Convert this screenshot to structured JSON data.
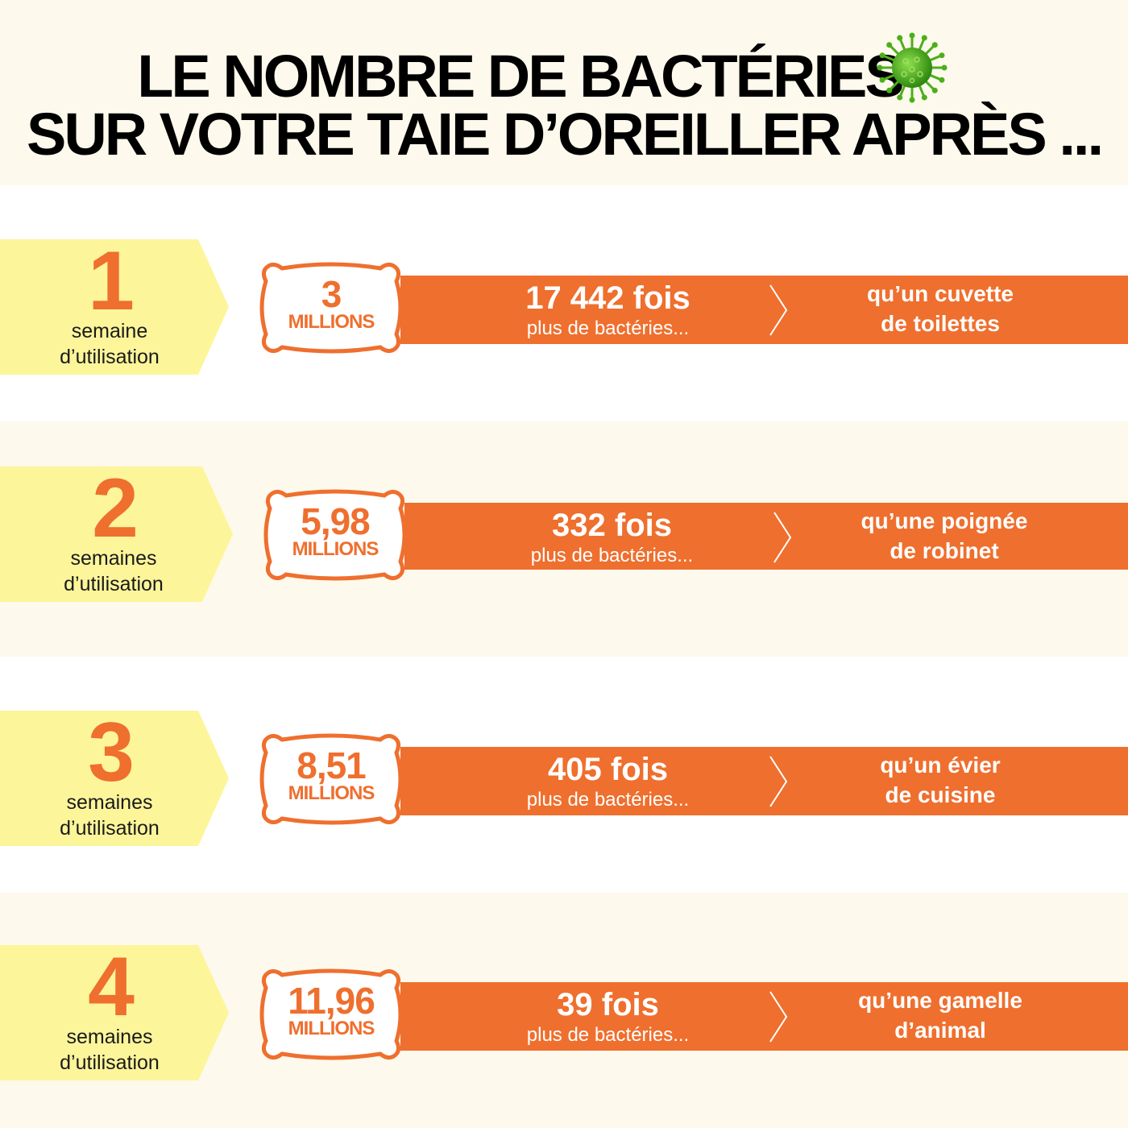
{
  "title": {
    "line1": "LE NOMBRE DE BACTÉRIES",
    "line2": "SUR VOTRE TAIE D’OREILLER APRÈS ...",
    "icon": "virus-icon"
  },
  "colors": {
    "orange": "#ef6f2e",
    "yellow": "#fdf59a",
    "cream": "#fdf9ec",
    "virus_green": "#4caf1a"
  },
  "rows": [
    {
      "number": "1",
      "weeks_line1": "semaine",
      "weeks_line2": "d’utilisation",
      "count": "3",
      "unit": "MILLIONS",
      "times": "17 442 fois",
      "more": "plus de bactéries...",
      "compare_line1": "qu’un cuvette",
      "compare_line2": "de toilettes"
    },
    {
      "number": "2",
      "weeks_line1": "semaines",
      "weeks_line2": "d’utilisation",
      "count": "5,98",
      "unit": "MILLIONS",
      "times": "332 fois",
      "more": "plus de bactéries...",
      "compare_line1": "qu’une poignée",
      "compare_line2": "de robinet"
    },
    {
      "number": "3",
      "weeks_line1": "semaines",
      "weeks_line2": "d’utilisation",
      "count": "8,51",
      "unit": "MILLIONS",
      "times": "405 fois",
      "more": "plus de bactéries...",
      "compare_line1": "qu’un évier",
      "compare_line2": "de cuisine"
    },
    {
      "number": "4",
      "weeks_line1": "semaines",
      "weeks_line2": "d’utilisation",
      "count": "11,96",
      "unit": "MILLIONS",
      "times": "39 fois",
      "more": "plus de bactéries...",
      "compare_line1": "qu’une gamelle",
      "compare_line2": "d’animal"
    }
  ]
}
